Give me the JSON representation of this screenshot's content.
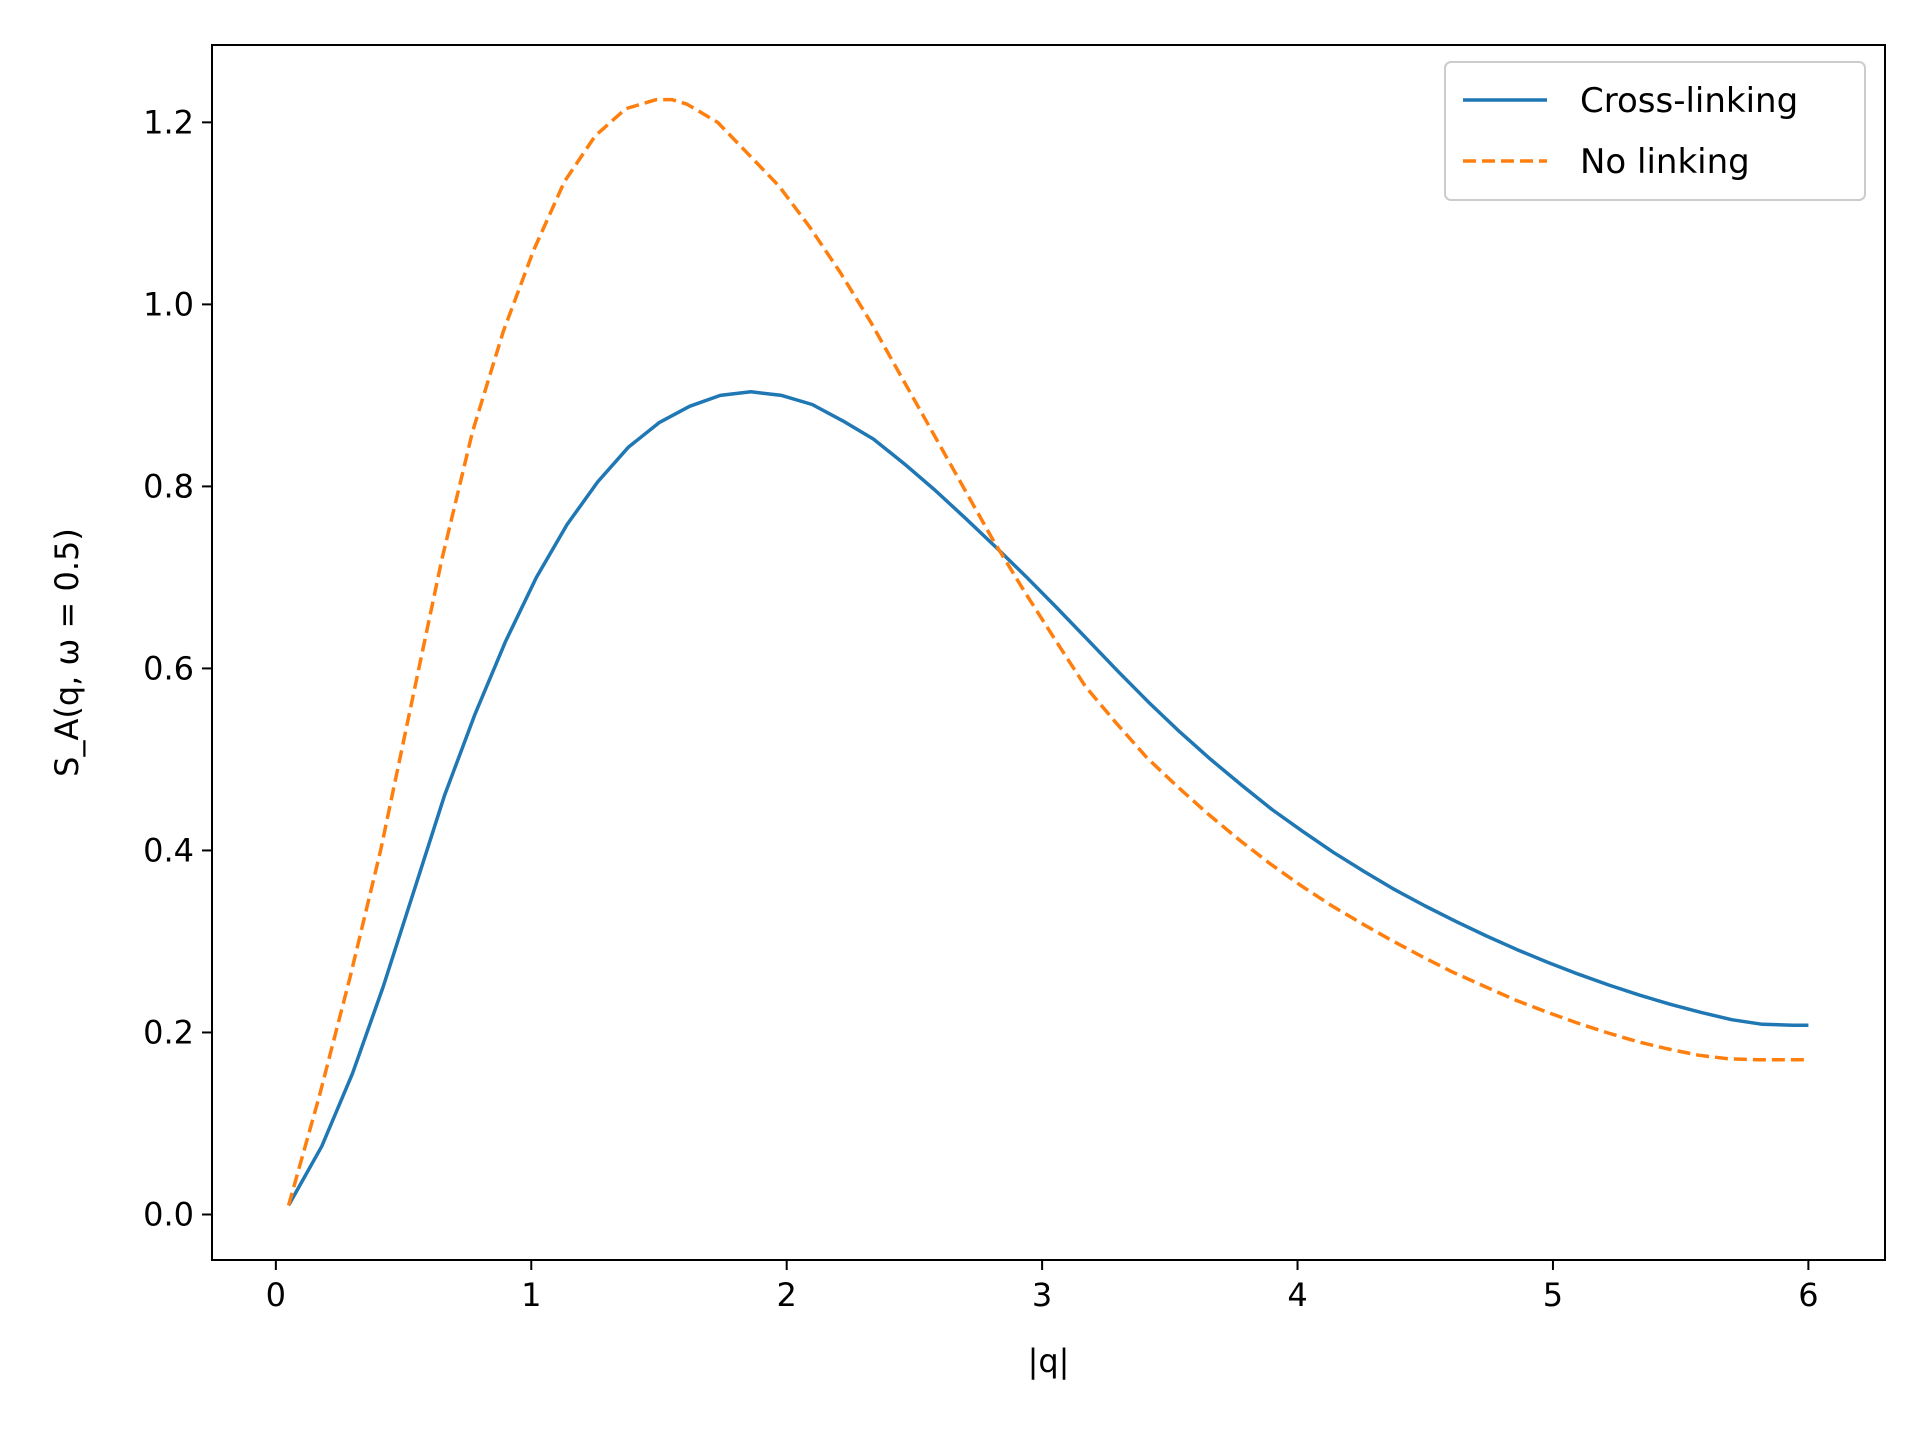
{
  "chart_data": {
    "type": "line",
    "title": "",
    "xlabel": "|q|",
    "ylabel": "S_A(q, ω = 0.5)",
    "xlim": [
      -0.25,
      6.3
    ],
    "ylim": [
      -0.05,
      1.285
    ],
    "xticks": [
      0,
      1,
      2,
      3,
      4,
      5,
      6
    ],
    "xtick_labels": [
      "0",
      "1",
      "2",
      "3",
      "4",
      "5",
      "6"
    ],
    "yticks": [
      0.0,
      0.2,
      0.4,
      0.6,
      0.8,
      1.0,
      1.2
    ],
    "ytick_labels": [
      "0.0",
      "0.2",
      "0.4",
      "0.6",
      "0.8",
      "1.0",
      "1.2"
    ],
    "grid": false,
    "legend_position": "top-right",
    "series": [
      {
        "name": "Cross-linking",
        "color": "#1f77b4",
        "style": "solid",
        "x": [
          0.05,
          0.18,
          0.3,
          0.42,
          0.54,
          0.66,
          0.78,
          0.9,
          1.02,
          1.14,
          1.26,
          1.38,
          1.5,
          1.62,
          1.74,
          1.86,
          1.98,
          2.1,
          2.22,
          2.34,
          2.46,
          2.58,
          2.7,
          2.82,
          2.94,
          3.06,
          3.18,
          3.3,
          3.42,
          3.54,
          3.66,
          3.78,
          3.9,
          4.02,
          4.14,
          4.26,
          4.38,
          4.5,
          4.62,
          4.74,
          4.86,
          4.98,
          5.1,
          5.22,
          5.34,
          5.46,
          5.58,
          5.7,
          5.82,
          5.94,
          6.0
        ],
        "y": [
          0.01,
          0.075,
          0.155,
          0.25,
          0.355,
          0.46,
          0.55,
          0.63,
          0.7,
          0.758,
          0.805,
          0.843,
          0.87,
          0.888,
          0.9,
          0.904,
          0.9,
          0.89,
          0.872,
          0.852,
          0.825,
          0.796,
          0.765,
          0.733,
          0.7,
          0.666,
          0.631,
          0.596,
          0.562,
          0.53,
          0.5,
          0.472,
          0.445,
          0.421,
          0.398,
          0.377,
          0.357,
          0.339,
          0.322,
          0.306,
          0.291,
          0.277,
          0.264,
          0.252,
          0.241,
          0.231,
          0.222,
          0.214,
          0.209,
          0.208,
          0.208
        ]
      },
      {
        "name": "No linking",
        "color": "#ff7f0e",
        "style": "dashed",
        "x": [
          0.05,
          0.17,
          0.29,
          0.41,
          0.53,
          0.65,
          0.77,
          0.89,
          1.01,
          1.13,
          1.25,
          1.37,
          1.49,
          1.55,
          1.61,
          1.73,
          1.85,
          1.97,
          2.09,
          2.21,
          2.33,
          2.45,
          2.57,
          2.69,
          2.81,
          2.93,
          3.05,
          3.17,
          3.29,
          3.41,
          3.53,
          3.65,
          3.77,
          3.89,
          4.01,
          4.13,
          4.25,
          4.37,
          4.49,
          4.61,
          4.73,
          4.85,
          4.97,
          5.09,
          5.21,
          5.33,
          5.45,
          5.57,
          5.69,
          5.81,
          5.93,
          6.0
        ],
        "y": [
          0.01,
          0.13,
          0.26,
          0.4,
          0.56,
          0.72,
          0.86,
          0.97,
          1.06,
          1.135,
          1.185,
          1.215,
          1.225,
          1.225,
          1.22,
          1.2,
          1.165,
          1.13,
          1.085,
          1.035,
          0.98,
          0.92,
          0.86,
          0.8,
          0.74,
          0.685,
          0.632,
          0.58,
          0.54,
          0.502,
          0.47,
          0.44,
          0.412,
          0.386,
          0.362,
          0.34,
          0.32,
          0.301,
          0.283,
          0.266,
          0.251,
          0.236,
          0.223,
          0.211,
          0.2,
          0.19,
          0.182,
          0.175,
          0.171,
          0.17,
          0.17,
          0.17
        ]
      }
    ]
  }
}
